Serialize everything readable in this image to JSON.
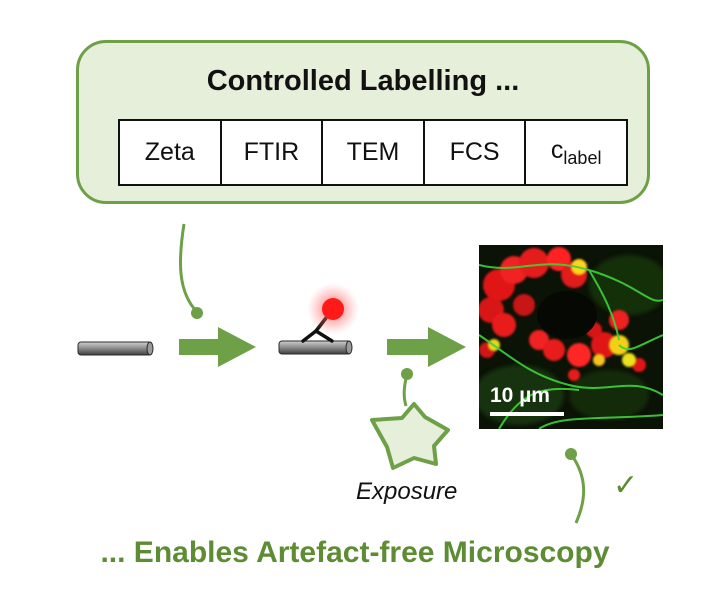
{
  "top": {
    "title": "Controlled Labelling ..."
  },
  "techniques": [
    {
      "label": "Zeta",
      "sub": ""
    },
    {
      "label": "FTIR",
      "sub": ""
    },
    {
      "label": "TEM",
      "sub": ""
    },
    {
      "label": "FCS",
      "sub": ""
    },
    {
      "label": "c",
      "sub": "label"
    }
  ],
  "exposure_label": "Exposure",
  "scale_bar_label": "10 µm",
  "checkmark": "✓",
  "bottom_title": "... Enables Artefact-free Microscopy",
  "colors": {
    "green": "#6ea047",
    "box_fill": "#e5efd9",
    "title_green": "#5e8c34",
    "label_red": "#ff2a2a"
  }
}
